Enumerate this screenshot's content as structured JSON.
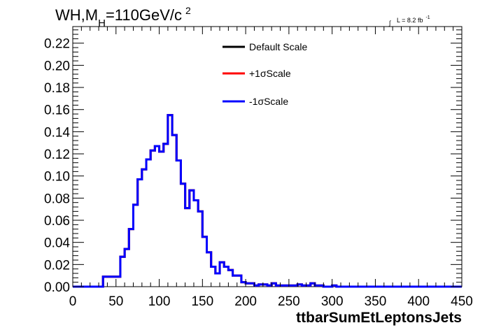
{
  "title": {
    "main": "WH,M",
    "subscript": "H",
    "rest": "=110GeV/c",
    "superscript": "2"
  },
  "lumi": {
    "integral": "∫",
    "text": "L = 8.2 fb",
    "superscript": "-1"
  },
  "chart_data": {
    "type": "line",
    "drawstyle": "step",
    "xlabel": "ttbarSumEtLeptonsJets",
    "ylabel": "",
    "xlim": [
      0,
      450
    ],
    "ylim": [
      0,
      0.235
    ],
    "grid": false,
    "legend_position": "top-center",
    "x_ticks": [
      "0",
      "50",
      "100",
      "150",
      "200",
      "250",
      "300",
      "350",
      "400",
      "450"
    ],
    "x_tick_values": [
      0,
      50,
      100,
      150,
      200,
      250,
      300,
      350,
      400,
      450
    ],
    "y_ticks": [
      "0.00",
      "0.02",
      "0.04",
      "0.06",
      "0.08",
      "0.10",
      "0.12",
      "0.14",
      "0.16",
      "0.18",
      "0.20",
      "0.22"
    ],
    "y_tick_values": [
      0,
      0.02,
      0.04,
      0.06,
      0.08,
      0.1,
      0.12,
      0.14,
      0.16,
      0.18,
      0.2,
      0.22
    ],
    "bin_edges": [
      0,
      5,
      10,
      15,
      20,
      25,
      30,
      35,
      40,
      45,
      50,
      55,
      60,
      65,
      70,
      75,
      80,
      85,
      90,
      95,
      100,
      105,
      110,
      115,
      120,
      125,
      130,
      135,
      140,
      145,
      150,
      155,
      160,
      165,
      170,
      175,
      180,
      185,
      190,
      195,
      200,
      205,
      210,
      215,
      220,
      225,
      230,
      235,
      240,
      245,
      250,
      255,
      260,
      265,
      270,
      275,
      280,
      285,
      290,
      295,
      300,
      305,
      310,
      315,
      320,
      325,
      330,
      335,
      340,
      345,
      350,
      355,
      360,
      365,
      370,
      375,
      380,
      385,
      390,
      395,
      400,
      405,
      410,
      415,
      420,
      425,
      430,
      435,
      440,
      445,
      450
    ],
    "series": [
      {
        "name": "Default Scale",
        "color": "#000000",
        "values": [
          0,
          0,
          0,
          0,
          0,
          0,
          0,
          0.009,
          0.009,
          0.009,
          0.009,
          0.027,
          0.034,
          0.052,
          0.074,
          0.097,
          0.106,
          0.115,
          0.123,
          0.127,
          0.122,
          0.129,
          0.155,
          0.137,
          0.114,
          0.093,
          0.071,
          0.087,
          0.078,
          0.068,
          0.045,
          0.031,
          0.018,
          0.012,
          0.022,
          0.018,
          0.015,
          0.01,
          0.01,
          0.004,
          0.003,
          0.003,
          0.001,
          0.002,
          0.002,
          0.001,
          0.003,
          0.001,
          0.001,
          0.001,
          0.001,
          0.001,
          0.002,
          0.001,
          0.001,
          0.003,
          0.001,
          0.001,
          0,
          0,
          0.001,
          0,
          0,
          0,
          0,
          0,
          0,
          0,
          0,
          0,
          0,
          0,
          0,
          0,
          0,
          0,
          0,
          0,
          0,
          0,
          0,
          0,
          0,
          0,
          0,
          0,
          0,
          0,
          0,
          0
        ]
      },
      {
        "name": "+1σScale",
        "color": "#ff0000",
        "values": [
          0,
          0,
          0,
          0,
          0,
          0,
          0,
          0.009,
          0.009,
          0.009,
          0.009,
          0.027,
          0.034,
          0.052,
          0.074,
          0.097,
          0.106,
          0.115,
          0.123,
          0.127,
          0.122,
          0.129,
          0.155,
          0.137,
          0.114,
          0.093,
          0.071,
          0.087,
          0.078,
          0.068,
          0.045,
          0.031,
          0.018,
          0.012,
          0.022,
          0.018,
          0.015,
          0.01,
          0.01,
          0.004,
          0.003,
          0.003,
          0.001,
          0.002,
          0.002,
          0.001,
          0.003,
          0.001,
          0.001,
          0.001,
          0.001,
          0.001,
          0.002,
          0.001,
          0.001,
          0.003,
          0.001,
          0.001,
          0,
          0,
          0.001,
          0,
          0,
          0,
          0,
          0,
          0,
          0,
          0,
          0,
          0,
          0,
          0,
          0,
          0,
          0,
          0,
          0,
          0,
          0,
          0,
          0,
          0,
          0,
          0,
          0,
          0,
          0,
          0,
          0
        ]
      },
      {
        "name": "-1σScale",
        "color": "#0000ff",
        "values": [
          0,
          0,
          0,
          0,
          0,
          0,
          0,
          0.009,
          0.009,
          0.009,
          0.009,
          0.027,
          0.034,
          0.052,
          0.074,
          0.097,
          0.106,
          0.115,
          0.123,
          0.127,
          0.122,
          0.129,
          0.155,
          0.137,
          0.114,
          0.093,
          0.071,
          0.087,
          0.078,
          0.068,
          0.045,
          0.031,
          0.018,
          0.012,
          0.022,
          0.018,
          0.015,
          0.01,
          0.01,
          0.004,
          0.003,
          0.003,
          0.001,
          0.002,
          0.002,
          0.001,
          0.003,
          0.001,
          0.001,
          0.001,
          0.001,
          0.001,
          0.002,
          0.001,
          0.001,
          0.003,
          0.001,
          0.001,
          0,
          0,
          0.001,
          0,
          0,
          0,
          0,
          0,
          0,
          0,
          0,
          0,
          0,
          0,
          0,
          0,
          0,
          0,
          0,
          0,
          0,
          0,
          0,
          0,
          0,
          0,
          0,
          0,
          0,
          0,
          0,
          0
        ]
      }
    ]
  }
}
